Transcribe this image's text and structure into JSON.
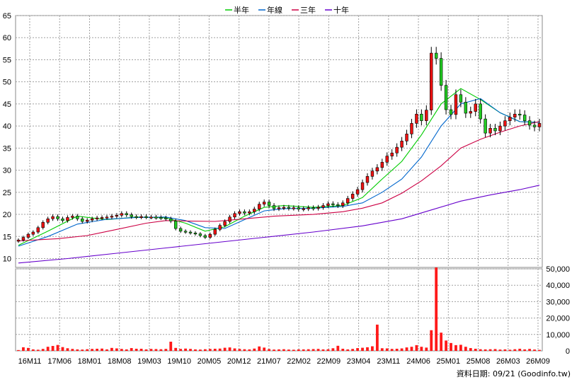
{
  "chart_data": [
    {
      "type": "candlestick",
      "panel": "price",
      "ylim": [
        8,
        65
      ],
      "yticks": [
        10,
        15,
        20,
        25,
        30,
        35,
        40,
        45,
        50,
        55,
        60,
        65
      ],
      "grid": true,
      "legend_position": "top-center",
      "legend": [
        {
          "label": "半年",
          "color": "#00cc00"
        },
        {
          "label": "年線",
          "color": "#0066cc"
        },
        {
          "label": "三年",
          "color": "#cc0044"
        },
        {
          "label": "十年",
          "color": "#6600cc"
        }
      ],
      "x_labels": [
        "16M11",
        "17M06",
        "18M01",
        "18M08",
        "19M03",
        "19M10",
        "20M05",
        "20M12",
        "21M07",
        "22M02",
        "22M09",
        "23M04",
        "23M11",
        "24M06",
        "25M01",
        "25M08",
        "26M03",
        "26M09"
      ],
      "close_series": [
        14.2,
        14.8,
        15.5,
        16.0,
        17.0,
        18.2,
        19.0,
        19.5,
        19.0,
        18.6,
        19.3,
        19.6,
        19.0,
        18.4,
        18.7,
        19.0,
        19.2,
        19.3,
        19.4,
        19.6,
        19.8,
        20.2,
        19.9,
        19.5,
        19.4,
        19.5,
        19.4,
        19.4,
        19.3,
        19.2,
        19.0,
        18.5,
        16.8,
        16.2,
        16.0,
        15.8,
        15.6,
        15.2,
        14.8,
        15.5,
        16.6,
        17.5,
        18.4,
        19.4,
        20.2,
        20.6,
        20.3,
        20.6,
        21.2,
        22.3,
        22.8,
        22.0,
        21.3,
        21.5,
        21.6,
        21.4,
        21.5,
        21.2,
        21.3,
        21.5,
        21.4,
        21.6,
        22.0,
        22.4,
        22.2,
        22.0,
        22.6,
        23.6,
        24.6,
        25.6,
        27.2,
        28.6,
        29.8,
        30.6,
        31.8,
        33.2,
        33.9,
        35.2,
        36.6,
        38.2,
        40.6,
        42.7,
        41.2,
        43.6,
        56.5,
        55.3,
        49.2,
        43.7,
        42.6,
        47.1,
        45.4,
        42.9,
        43.3,
        45.0,
        41.6,
        38.4,
        39.5,
        38.9,
        40.0,
        41.2,
        42.0,
        42.7,
        42.5,
        41.2,
        40.2,
        39.8,
        40.6
      ],
      "ma": [
        {
          "label": "半年",
          "points": [
            [
              0,
              13.0
            ],
            [
              6,
              16.2
            ],
            [
              12,
              19.6
            ],
            [
              18,
              18.8
            ],
            [
              24,
              19.4
            ],
            [
              30,
              19.2
            ],
            [
              34,
              18.0
            ],
            [
              38,
              16.2
            ],
            [
              42,
              17.2
            ],
            [
              46,
              19.6
            ],
            [
              50,
              21.6
            ],
            [
              54,
              22.0
            ],
            [
              60,
              21.6
            ],
            [
              66,
              22.0
            ],
            [
              70,
              23.8
            ],
            [
              74,
              28.0
            ],
            [
              78,
              32.0
            ],
            [
              82,
              38.0
            ],
            [
              86,
              45.0
            ],
            [
              90,
              48.5
            ],
            [
              94,
              46.0
            ],
            [
              98,
              43.0
            ],
            [
              102,
              41.0
            ],
            [
              106,
              40.8
            ]
          ]
        },
        {
          "label": "年線",
          "points": [
            [
              0,
              12.8
            ],
            [
              6,
              15.0
            ],
            [
              12,
              17.8
            ],
            [
              18,
              18.9
            ],
            [
              24,
              19.3
            ],
            [
              30,
              19.4
            ],
            [
              34,
              18.6
            ],
            [
              38,
              17.0
            ],
            [
              42,
              16.8
            ],
            [
              46,
              18.8
            ],
            [
              50,
              20.8
            ],
            [
              54,
              21.3
            ],
            [
              60,
              21.4
            ],
            [
              66,
              21.8
            ],
            [
              70,
              22.6
            ],
            [
              74,
              25.0
            ],
            [
              78,
              28.0
            ],
            [
              82,
              33.0
            ],
            [
              86,
              40.0
            ],
            [
              90,
              45.0
            ],
            [
              94,
              46.2
            ],
            [
              98,
              43.0
            ],
            [
              102,
              41.0
            ],
            [
              106,
              40.8
            ]
          ]
        },
        {
          "label": "三年",
          "points": [
            [
              0,
              14.0
            ],
            [
              8,
              14.5
            ],
            [
              14,
              15.2
            ],
            [
              20,
              16.6
            ],
            [
              26,
              18.0
            ],
            [
              30,
              18.6
            ],
            [
              34,
              18.5
            ],
            [
              40,
              18.4
            ],
            [
              46,
              19.0
            ],
            [
              52,
              19.6
            ],
            [
              60,
              20.0
            ],
            [
              66,
              20.6
            ],
            [
              70,
              21.4
            ],
            [
              74,
              22.6
            ],
            [
              78,
              24.8
            ],
            [
              82,
              27.6
            ],
            [
              86,
              31.0
            ],
            [
              90,
              35.0
            ],
            [
              94,
              37.0
            ],
            [
              98,
              38.6
            ],
            [
              102,
              40.0
            ],
            [
              106,
              41.0
            ]
          ]
        },
        {
          "label": "十年",
          "points": [
            [
              0,
              9.0
            ],
            [
              10,
              10.0
            ],
            [
              20,
              11.2
            ],
            [
              30,
              12.4
            ],
            [
              40,
              13.6
            ],
            [
              50,
              14.8
            ],
            [
              60,
              16.0
            ],
            [
              70,
              17.4
            ],
            [
              78,
              19.0
            ],
            [
              84,
              21.0
            ],
            [
              90,
              23.0
            ],
            [
              96,
              24.4
            ],
            [
              102,
              25.6
            ],
            [
              106,
              26.6
            ]
          ]
        }
      ]
    },
    {
      "type": "bar",
      "panel": "volume",
      "ylim": [
        0,
        50000
      ],
      "yticks": [
        "0",
        "10,000",
        "20,000",
        "30,000",
        "40,000",
        "50,000"
      ],
      "values": [
        500,
        2200,
        1800,
        900,
        700,
        1200,
        2500,
        3000,
        3600,
        2300,
        1600,
        1200,
        900,
        800,
        1000,
        1200,
        1300,
        1400,
        900,
        1800,
        1500,
        1200,
        900,
        1700,
        1300,
        1300,
        900,
        1200,
        1100,
        1000,
        1200,
        5600,
        1800,
        1200,
        1400,
        1200,
        900,
        800,
        1000,
        1200,
        1300,
        1400,
        1900,
        2100,
        1500,
        1200,
        1000,
        900,
        1400,
        2700,
        2000,
        1100,
        800,
        900,
        1000,
        800,
        700,
        900,
        900,
        1000,
        1100,
        1200,
        900,
        1000,
        1600,
        3100,
        1300,
        900,
        1200,
        1700,
        1900,
        2200,
        2800,
        16000,
        1600,
        1500,
        1200,
        1300,
        1500,
        2100,
        2500,
        3500,
        2500,
        2000,
        12600,
        50800,
        11100,
        6300,
        4800,
        3500,
        3700,
        2500,
        1700,
        1300,
        1000,
        900,
        1000,
        1100,
        800,
        900,
        700,
        1000,
        1300,
        900,
        1200,
        800,
        600
      ],
      "grid": true
    }
  ],
  "source_label": "資料日期: 09/21  (Goodinfo.tw)"
}
